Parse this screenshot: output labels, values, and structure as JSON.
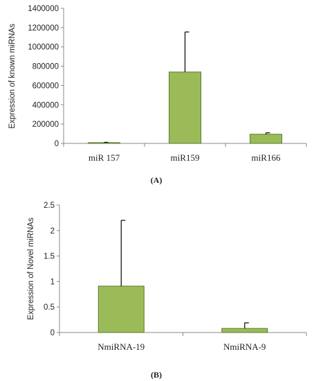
{
  "chart_data": [
    {
      "type": "bar",
      "panel_label": "(A)",
      "ylabel": "Expression of known miRNAs",
      "categories": [
        "miR 157",
        "miR159",
        "miR166"
      ],
      "values": [
        8000,
        740000,
        95000
      ],
      "error_plus": [
        3000,
        415000,
        15000
      ],
      "ylim": [
        0,
        1400000
      ],
      "yticks": [
        "0",
        "200000",
        "400000",
        "600000",
        "800000",
        "1000000",
        "1200000",
        "1400000"
      ],
      "ytick_values": [
        0,
        200000,
        400000,
        600000,
        800000,
        1000000,
        1200000,
        1400000
      ],
      "bar_color": "#9bbb59",
      "grid": false
    },
    {
      "type": "bar",
      "panel_label": "(B)",
      "ylabel": "Expression of Novel miRNAs",
      "categories": [
        "NmiRNA-19",
        "NmiRNA-9"
      ],
      "values": [
        0.91,
        0.08
      ],
      "error_plus": [
        1.29,
        0.11
      ],
      "ylim": [
        0,
        2.5
      ],
      "yticks": [
        "0",
        "0.5",
        "1",
        "1.5",
        "2",
        "2.5"
      ],
      "ytick_values": [
        0,
        0.5,
        1,
        1.5,
        2,
        2.5
      ],
      "bar_color": "#9bbb59",
      "grid": false
    }
  ]
}
